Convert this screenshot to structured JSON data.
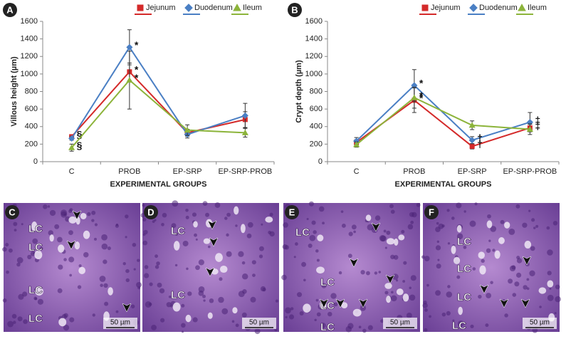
{
  "chart_data": [
    {
      "type": "line",
      "panel_label": "A",
      "ylabel": "Villous height (µm)",
      "xlabel": "EXPERIMENTAL GROUPS",
      "categories": [
        "C",
        "PROB",
        "EP-SRP",
        "EP-SRP-PROB"
      ],
      "ylim": [
        0,
        1600
      ],
      "yticks": [
        0,
        200,
        400,
        600,
        800,
        1000,
        1200,
        1400,
        1600
      ],
      "series": [
        {
          "name": "Jejunum",
          "color": "#d42a2a",
          "marker": "square",
          "values": [
            285,
            1025,
            330,
            480
          ],
          "errors": [
            20,
            100,
            40,
            90
          ],
          "annotations": [
            "§",
            "*",
            null,
            null
          ]
        },
        {
          "name": "Duodenum",
          "color": "#4a7fc4",
          "marker": "diamond",
          "values": [
            265,
            1305,
            310,
            525
          ],
          "errors": [
            20,
            200,
            40,
            140
          ],
          "annotations": [
            null,
            "*",
            null,
            null
          ]
        },
        {
          "name": "Ileum",
          "color": "#8cb43a",
          "marker": "triangle",
          "values": [
            160,
            930,
            360,
            330
          ],
          "errors": [
            40,
            330,
            60,
            50
          ],
          "annotations": [
            "§",
            "*",
            null,
            null
          ]
        }
      ]
    },
    {
      "type": "line",
      "panel_label": "B",
      "ylabel": "Crypt depth (µm)",
      "xlabel": "EXPERIMENTAL GROUPS",
      "categories": [
        "C",
        "PROB",
        "EP-SRP",
        "EP-SRP-PROB"
      ],
      "ylim": [
        0,
        1600
      ],
      "yticks": [
        0,
        200,
        400,
        600,
        800,
        1000,
        1200,
        1400,
        1600
      ],
      "series": [
        {
          "name": "Jejunum",
          "color": "#d42a2a",
          "marker": "square",
          "values": [
            220,
            700,
            175,
            385
          ],
          "errors": [
            30,
            140,
            30,
            40
          ],
          "annotations": [
            null,
            "*",
            "†",
            "‡"
          ]
        },
        {
          "name": "Duodenum",
          "color": "#4a7fc4",
          "marker": "diamond",
          "values": [
            235,
            870,
            245,
            450
          ],
          "errors": [
            40,
            180,
            40,
            110
          ],
          "annotations": [
            null,
            "*",
            "†",
            "‡"
          ]
        },
        {
          "name": "Ileum",
          "color": "#8cb43a",
          "marker": "triangle",
          "values": [
            195,
            730,
            415,
            370
          ],
          "errors": [
            30,
            120,
            50,
            60
          ],
          "annotations": [
            null,
            "*",
            null,
            null
          ]
        }
      ]
    }
  ],
  "panels": [
    {
      "label": "C",
      "annotations": [
        "LC",
        "LC",
        "LC",
        "LC"
      ],
      "scale": "50 µm"
    },
    {
      "label": "D",
      "annotations": [
        "LC",
        "LC"
      ],
      "scale": "50 µm"
    },
    {
      "label": "E",
      "annotations": [
        "LC",
        "LC",
        "LC",
        "LC"
      ],
      "scale": "50 µm"
    },
    {
      "label": "F",
      "annotations": [
        "LC",
        "LC",
        "LC",
        "LC"
      ],
      "scale": "50 µm"
    }
  ]
}
